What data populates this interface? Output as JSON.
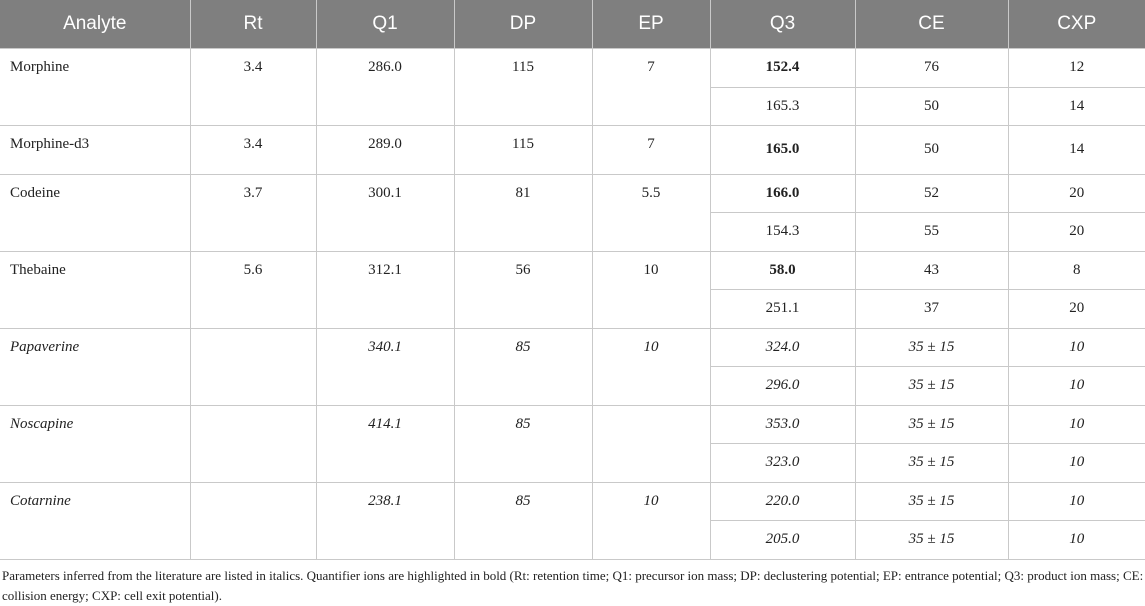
{
  "table": {
    "header": [
      "Analyte",
      "Rt",
      "Q1",
      "DP",
      "EP",
      "Q3",
      "CE",
      "CXP"
    ],
    "rows": [
      {
        "analyte": "Morphine",
        "rt": "3.4",
        "q1": "286.0",
        "dp": "115",
        "ep": "7",
        "transitions": [
          {
            "q3": "152.4",
            "ce": "76",
            "cxp": "12"
          },
          {
            "q3": "165.3",
            "ce": "50",
            "cxp": "14"
          }
        ]
      },
      {
        "analyte": "Morphine-d3",
        "rt": "3.4",
        "q1": "289.0",
        "dp": "115",
        "ep": "7",
        "transitions": [
          {
            "q3": "165.0",
            "ce": "50",
            "cxp": "14"
          }
        ]
      },
      {
        "analyte": "Codeine",
        "rt": "3.7",
        "q1": "300.1",
        "dp": "81",
        "ep": "5.5",
        "transitions": [
          {
            "q3": "166.0",
            "ce": "52",
            "cxp": "20"
          },
          {
            "q3": "154.3",
            "ce": "55",
            "cxp": "20"
          }
        ]
      },
      {
        "analyte": "Thebaine",
        "rt": "5.6",
        "q1": "312.1",
        "dp": "56",
        "ep": "10",
        "transitions": [
          {
            "q3": "58.0",
            "ce": "43",
            "cxp": "8"
          },
          {
            "q3": "251.1",
            "ce": "37",
            "cxp": "20"
          }
        ]
      },
      {
        "analyte": "Papaverine",
        "q1": "340.1",
        "dp": "85",
        "ep": "10",
        "transitions": [
          {
            "q3": "324.0",
            "ce": "35 ± 15",
            "cxp": "10"
          },
          {
            "q3": "296.0",
            "ce": "35 ± 15",
            "cxp": "10"
          }
        ]
      },
      {
        "analyte": "Noscapine",
        "q1": "414.1",
        "dp": "85",
        "transitions": [
          {
            "q3": "353.0",
            "ce": "35 ± 15",
            "cxp": "10"
          },
          {
            "q3": "323.0",
            "ce": "35 ± 15",
            "cxp": "10"
          }
        ]
      },
      {
        "analyte": "Cotarnine",
        "q1": "238.1",
        "dp": "85",
        "ep": "10",
        "transitions": [
          {
            "q3": "220.0",
            "ce": "35 ± 15",
            "cxp": "10"
          },
          {
            "q3": "205.0",
            "ce": "35 ± 15",
            "cxp": "10"
          }
        ]
      }
    ],
    "footnote": "Parameters inferred from the literature are listed in italics. Quantifier ions are highlighted in bold (Rt: retention time; Q1: precursor ion mass; DP: declustering potential; EP: entrance potential; Q3: product ion mass; CE: collision energy; CXP: cell exit potential)."
  }
}
